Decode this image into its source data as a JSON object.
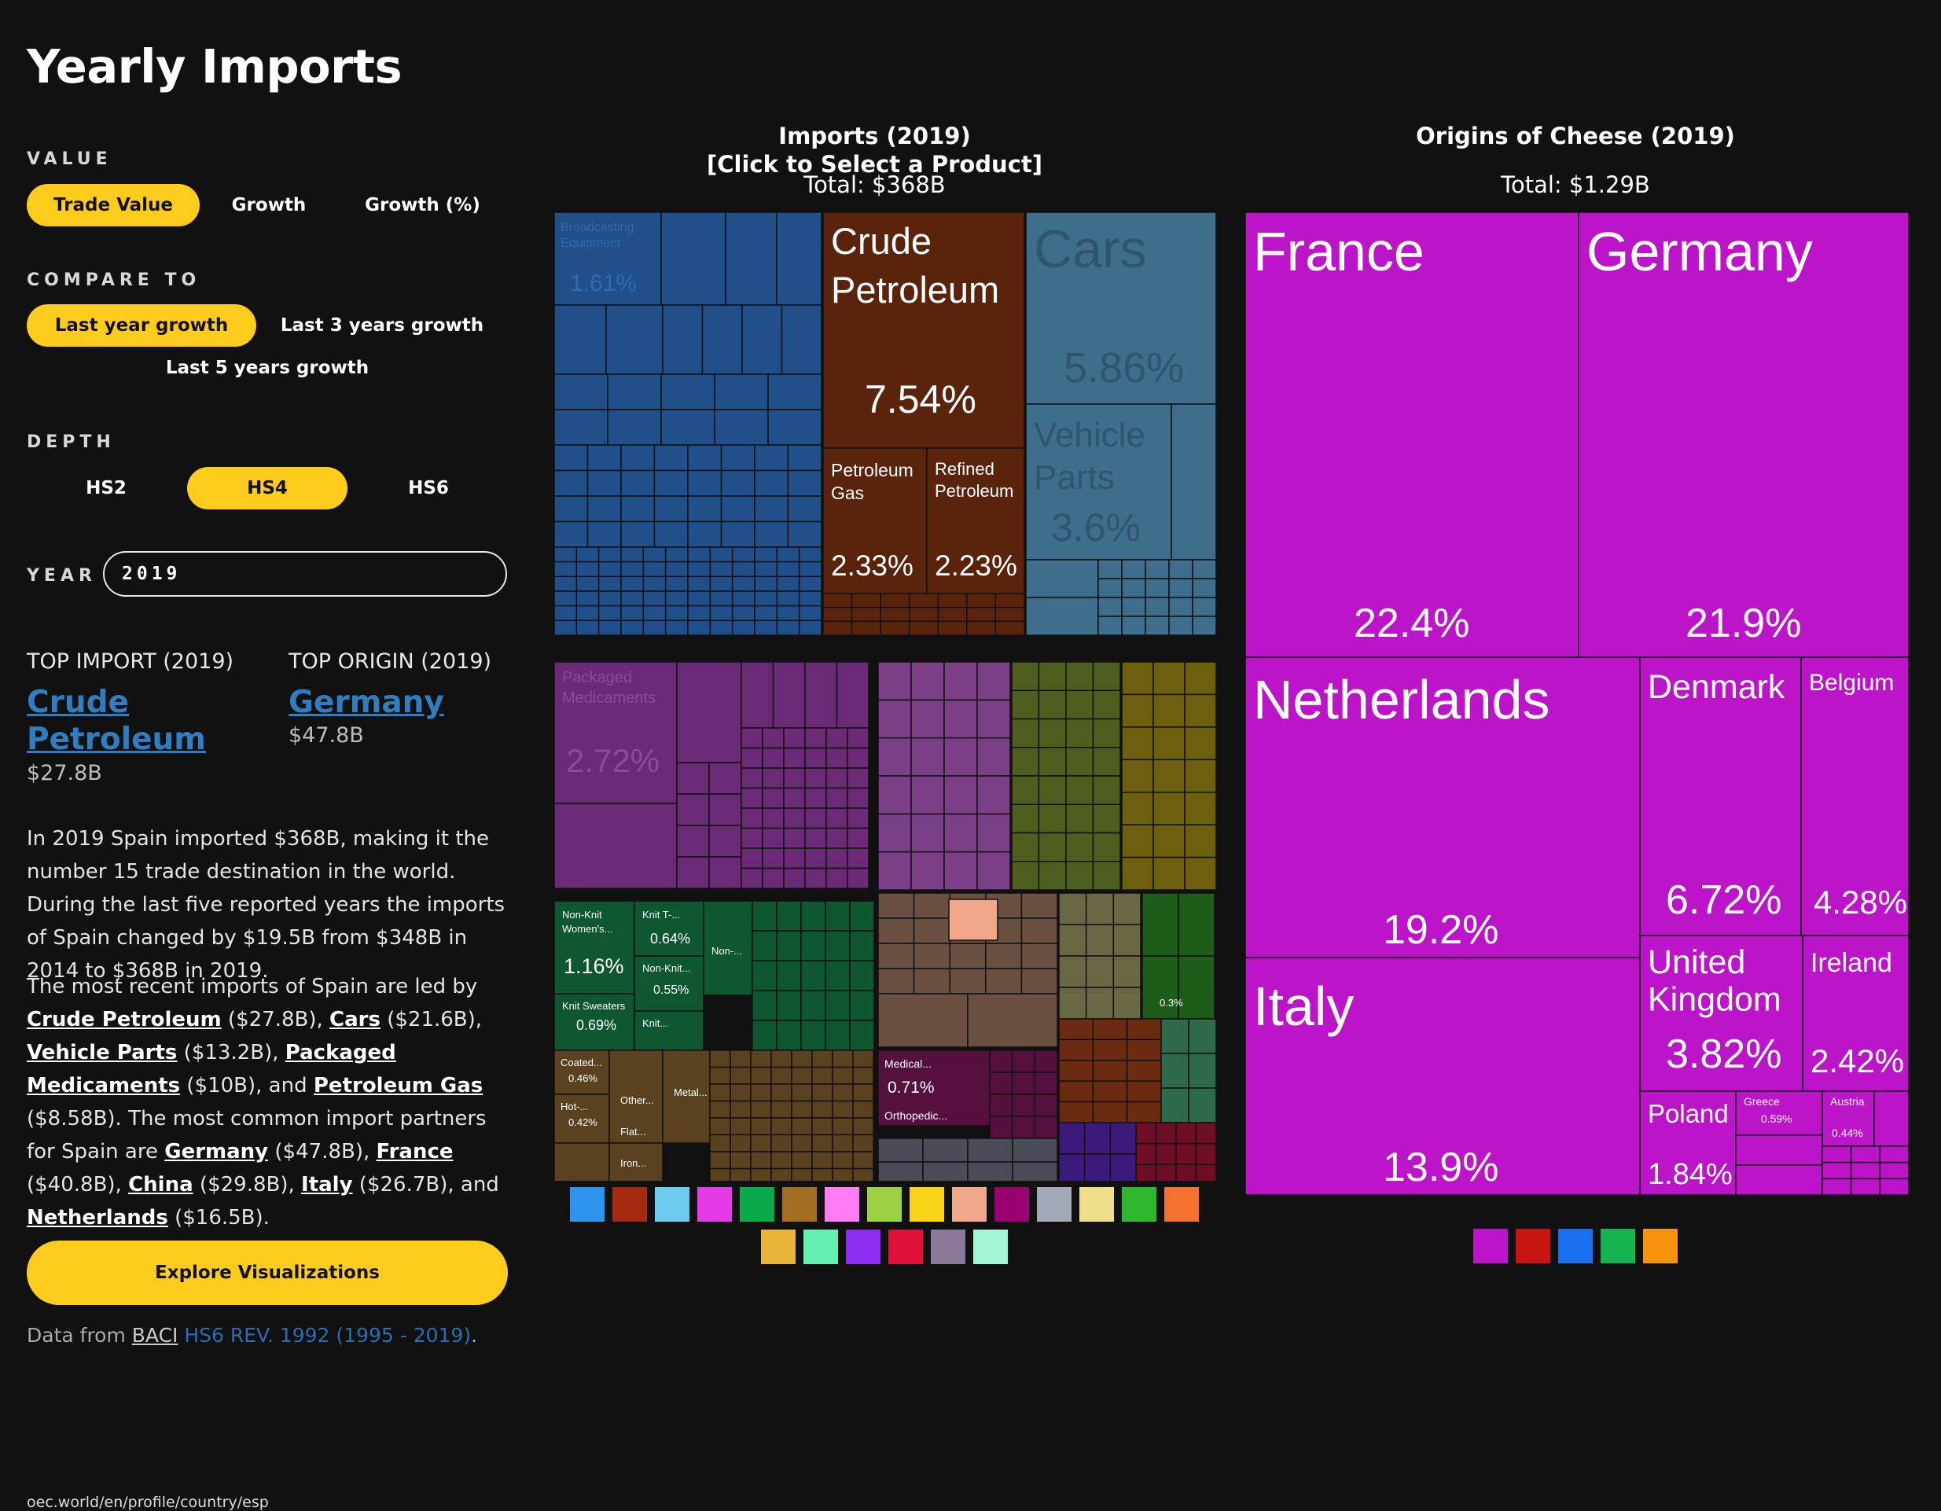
{
  "page": {
    "title": "Yearly Imports",
    "url": "oec.world/en/profile/country/esp"
  },
  "controls": {
    "value_label": "VALUE",
    "value_options": [
      "Trade Value",
      "Growth",
      "Growth (%)"
    ],
    "value_selected": "Trade Value",
    "compare_label": "COMPARE TO",
    "compare_options": [
      "Last year growth",
      "Last 3 years growth",
      "Last 5 years growth"
    ],
    "compare_selected": "Last year growth",
    "depth_label": "DEPTH",
    "depth_options": [
      "HS2",
      "HS4",
      "HS6"
    ],
    "depth_selected": "HS4",
    "year_label": "YEAR",
    "year_value": "2019"
  },
  "top": {
    "import_heading": "TOP IMPORT (2019)",
    "import_name_line1": "Crude",
    "import_name_line2": "Petroleum",
    "import_value": "$27.8B",
    "origin_heading": "TOP ORIGIN (2019)",
    "origin_name": "Germany",
    "origin_value": "$47.8B"
  },
  "text": {
    "para1": "In 2019 Spain imported $368B, making it the number 15 trade destination in the world. During the last five reported years the imports of Spain changed by $19.5B from $348B in 2014 to $368B in 2019.",
    "para2_prefix": "The most recent imports of Spain are led by ",
    "para2_items": [
      {
        "name": "Crude Petroleum",
        "value": " ($27.8B), "
      },
      {
        "name": "Cars",
        "value": " ($21.6B), "
      },
      {
        "name": "Vehicle Parts",
        "value": " ($13.2B), "
      },
      {
        "name": "Packaged Medicaments",
        "value": " ($10B), and "
      },
      {
        "name": "Petroleum Gas",
        "value": " ($8.58B). "
      }
    ],
    "para2_mid": "The most common import partners for Spain are ",
    "para2_partners": [
      {
        "name": "Germany",
        "value": " ($47.8B), "
      },
      {
        "name": "France",
        "value": " ($40.8B), "
      },
      {
        "name": "China",
        "value": " ($29.8B), "
      },
      {
        "name": "Italy",
        "value": " ($26.7B), and "
      },
      {
        "name": "Netherlands",
        "value": " ($16.5B)."
      }
    ],
    "explore_button": "Explore Visualizations",
    "data_from": "Data from ",
    "data_source": "BACI",
    "data_revision": "HS6 REV. 1992 (1995 - 2019)",
    "data_end": "."
  },
  "imports_chart": {
    "title_line1": "Imports (2019)",
    "title_line2": "[Click to Select a Product]",
    "total": "Total: $368B",
    "labeled_tiles": [
      {
        "label": "Crude Petroleum",
        "share": "7.54%",
        "color": "#5a230c"
      },
      {
        "label": "Cars",
        "share": "5.86%",
        "color": "#3e6e8c"
      },
      {
        "label": "Vehicle Parts",
        "share": "3.6%",
        "color": "#3e6e8c"
      },
      {
        "label": "Petroleum Gas",
        "share": "2.33%",
        "color": "#5a230c"
      },
      {
        "label": "Refined Petroleum",
        "share": "2.23%",
        "color": "#5a230c"
      },
      {
        "label": "Packaged Medicaments",
        "share": "2.72%",
        "color": "#6a2a76"
      },
      {
        "label": "Broadcasting Equipment",
        "share": "1.61%",
        "color": "#204f8a"
      },
      {
        "label": "Non-Knit Women's...",
        "share": "1.16%",
        "color": "#0e5730"
      },
      {
        "label": "Medical...",
        "share": "0.71%",
        "color": "#55103d"
      },
      {
        "label": "Knit T-...",
        "share": "0.64%",
        "color": "#0e5730"
      },
      {
        "label": "Knit Sweaters",
        "share": "0.69%",
        "color": "#0e5730"
      },
      {
        "label": "Non-Knit...",
        "share": "0.55%",
        "color": "#0e5730"
      },
      {
        "label": "Coated...",
        "share": "0.46%",
        "color": "#5a4220"
      },
      {
        "label": "Hot-...",
        "share": "0.42%",
        "color": "#5a4220"
      }
    ],
    "legend_colors": [
      "#2e95ef",
      "#a52b0e",
      "#6ecbf0",
      "#e73ae7",
      "#0aa94a",
      "#a36e22",
      "#ff7cf5",
      "#9ed043",
      "#f7d216",
      "#f1a88a",
      "#9a0070",
      "#a3a9b6",
      "#f0df8a",
      "#2eb82e",
      "#f4712f",
      "#e8b43a",
      "#63f0b0",
      "#8b2cf0",
      "#e0123c",
      "#8a7a9a",
      "#a3f5d4"
    ]
  },
  "origins_chart": {
    "title": "Origins of Cheese (2019)",
    "total": "Total: $1.29B",
    "color": "#bb14c9",
    "tiles": [
      {
        "name": "France",
        "share": "22.4%"
      },
      {
        "name": "Germany",
        "share": "21.9%"
      },
      {
        "name": "Netherlands",
        "share": "19.2%"
      },
      {
        "name": "Italy",
        "share": "13.9%"
      },
      {
        "name": "Denmark",
        "share": "6.72%"
      },
      {
        "name": "Belgium",
        "share": "4.28%"
      },
      {
        "name": "United Kingdom",
        "share": "3.82%"
      },
      {
        "name": "Ireland",
        "share": "2.42%"
      },
      {
        "name": "Poland",
        "share": "1.84%"
      },
      {
        "name": "Greece",
        "share": "0.59%"
      },
      {
        "name": "Austria",
        "share": "0.44%"
      }
    ],
    "legend_colors": [
      "#bb14c9",
      "#c8150f",
      "#1a6ef0",
      "#15b450",
      "#f6920c"
    ]
  }
}
